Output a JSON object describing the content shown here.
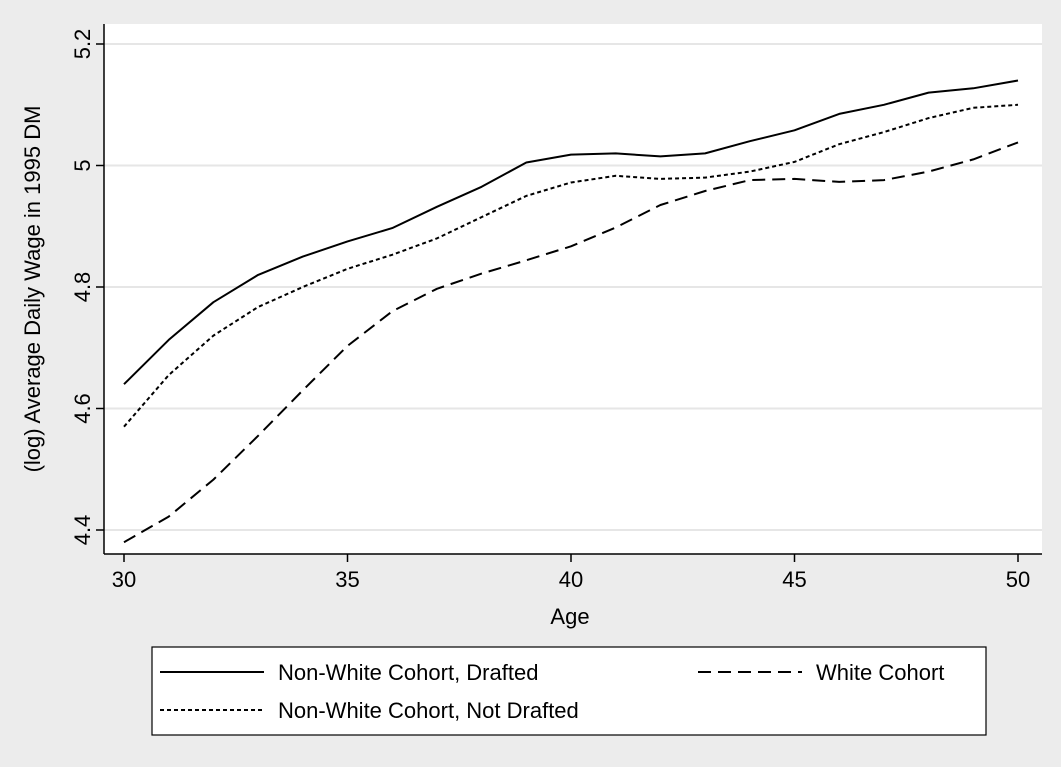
{
  "chart_data": {
    "type": "line",
    "title": "",
    "xlabel": "Age",
    "ylabel": "(log) Average Daily Wage in 1995 DM",
    "xlim": [
      30,
      50
    ],
    "ylim": [
      4.38,
      5.2
    ],
    "x_ticks": [
      "30",
      "35",
      "40",
      "45",
      "50"
    ],
    "y_ticks": [
      "4.4",
      "4.6",
      "4.8",
      "5",
      "5.2"
    ],
    "grid": "horizontal",
    "legend_position": "bottom",
    "x": [
      30,
      31,
      32,
      33,
      34,
      35,
      36,
      37,
      38,
      39,
      40,
      41,
      42,
      43,
      44,
      45,
      46,
      47,
      48,
      49,
      50
    ],
    "series": [
      {
        "name": "Non-White Cohort, Drafted",
        "dash": "solid",
        "color": "#000000",
        "values": [
          4.64,
          4.713,
          4.775,
          4.82,
          4.85,
          4.875,
          4.897,
          4.932,
          4.965,
          5.005,
          5.018,
          5.02,
          5.015,
          5.02,
          5.04,
          5.058,
          5.085,
          5.1,
          5.12,
          5.127,
          5.14
        ]
      },
      {
        "name": "White Cohort",
        "dash": "long-dash",
        "color": "#000000",
        "values": [
          4.38,
          4.422,
          4.483,
          4.555,
          4.63,
          4.703,
          4.76,
          4.797,
          4.822,
          4.844,
          4.867,
          4.898,
          4.935,
          4.958,
          4.976,
          4.978,
          4.973,
          4.976,
          4.99,
          5.01,
          5.038
        ]
      },
      {
        "name": "Non-White Cohort, Not Drafted",
        "dash": "short-dash",
        "color": "#000000",
        "values": [
          4.57,
          4.655,
          4.72,
          4.767,
          4.8,
          4.83,
          4.853,
          4.88,
          4.915,
          4.95,
          4.972,
          4.983,
          4.978,
          4.98,
          4.99,
          5.006,
          5.035,
          5.055,
          5.078,
          5.095,
          5.1
        ]
      }
    ]
  }
}
